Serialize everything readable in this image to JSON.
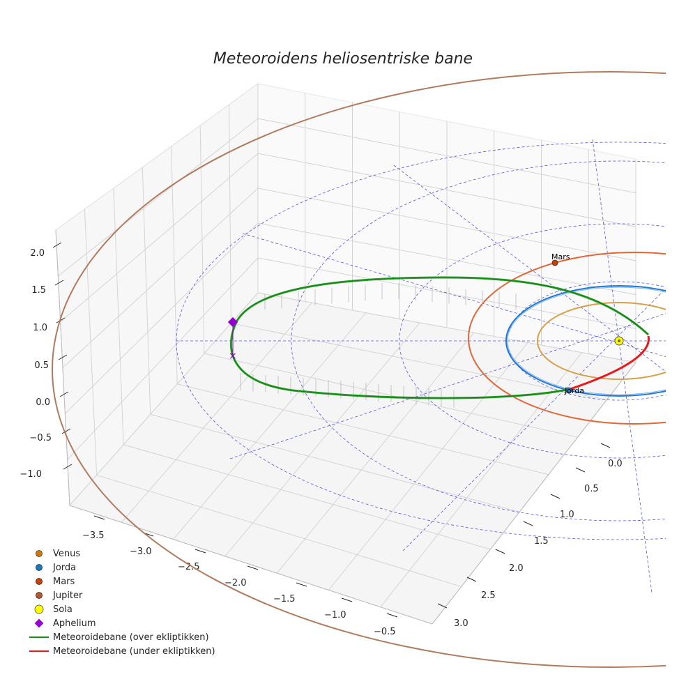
{
  "chart_data": {
    "type": "3d-line",
    "title": "Meteoroidens heliosentriske bane",
    "x_ticks": [
      "−3.5",
      "−3.0",
      "−2.5",
      "−2.0",
      "−1.5",
      "−1.0",
      "−0.5"
    ],
    "y_ticks": [
      "0.0",
      "0.5",
      "1.0",
      "1.5",
      "2.0",
      "2.5",
      "3.0"
    ],
    "z_ticks": [
      "−1.0",
      "−0.5",
      "0.0",
      "0.5",
      "1.0",
      "1.5",
      "2.0"
    ],
    "orbits": [
      {
        "name": "Venus",
        "semi_major_au": 0.72,
        "color": "#d4a04c"
      },
      {
        "name": "Jorda",
        "semi_major_au": 1.0,
        "color": "#1f77d4"
      },
      {
        "name": "Mars",
        "semi_major_au": 1.52,
        "color": "#e0673a"
      },
      {
        "name": "Jupiter",
        "semi_major_au": 5.2,
        "color": "#b07a5e"
      }
    ],
    "points": [
      {
        "name": "Jorda",
        "label": "Jorda"
      },
      {
        "name": "Mars",
        "label": "Mars"
      },
      {
        "name": "Sola"
      },
      {
        "name": "Aphelium"
      }
    ],
    "legend": [
      {
        "label": "Venus",
        "marker": "circle",
        "color": "#c97a16"
      },
      {
        "label": "Jorda",
        "marker": "circle",
        "color": "#1f77b4"
      },
      {
        "label": "Mars",
        "marker": "circle",
        "color": "#c1440e"
      },
      {
        "label": "Jupiter",
        "marker": "circle",
        "color": "#b05a35"
      },
      {
        "label": "Sola",
        "marker": "sun",
        "color": "#ffff00"
      },
      {
        "label": "Aphelium",
        "marker": "diamond",
        "color": "#9400d3"
      },
      {
        "label": "Meteoroidebane (over ekliptikken)",
        "marker": "line",
        "color": "#138d13"
      },
      {
        "label": "Meteoroidebane (under ekliptikken)",
        "marker": "line",
        "color": "#e8191c"
      }
    ]
  }
}
